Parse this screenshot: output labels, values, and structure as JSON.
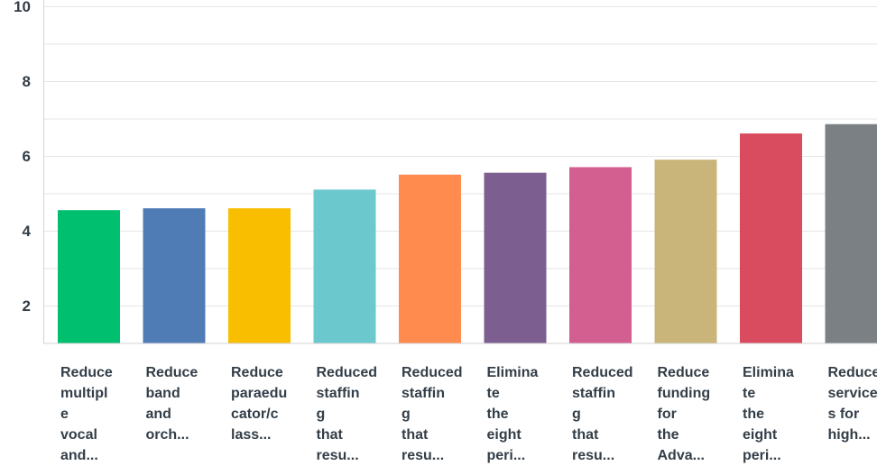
{
  "chart_data": {
    "type": "bar",
    "title": "",
    "xlabel": "",
    "ylabel": "",
    "ylim": [
      0,
      10
    ],
    "yticks": [
      2,
      4,
      6,
      8,
      10
    ],
    "grid": true,
    "categories": [
      [
        "Reduce",
        "multipl",
        "e",
        "vocal",
        "and..."
      ],
      [
        "Reduce",
        "band",
        "and",
        "orch..."
      ],
      [
        "Reduce",
        "paraedu",
        "cator/c",
        "lass..."
      ],
      [
        "Reduced",
        "staffin",
        "g",
        "that",
        "resu..."
      ],
      [
        "Reduced",
        "staffin",
        "g",
        "that",
        "resu..."
      ],
      [
        "Elimina",
        "te",
        "the",
        "eight",
        "peri..."
      ],
      [
        "Reduced",
        "staffin",
        "g",
        "that",
        "resu..."
      ],
      [
        "Reduce",
        "funding",
        "for",
        "the",
        "Adva..."
      ],
      [
        "Elimina",
        "te",
        "the",
        "eight",
        "peri..."
      ],
      [
        "Reduce",
        "service",
        "s for",
        "high..."
      ]
    ],
    "values": [
      4.55,
      4.6,
      4.6,
      5.1,
      5.5,
      5.55,
      5.7,
      5.9,
      6.6,
      6.85
    ],
    "colors": [
      "#00bf6f",
      "#507cb6",
      "#f9be00",
      "#6bc8cd",
      "#ff8b4f",
      "#7d5e90",
      "#d25f90",
      "#c9b57a",
      "#d94c5f",
      "#7a8083"
    ]
  }
}
